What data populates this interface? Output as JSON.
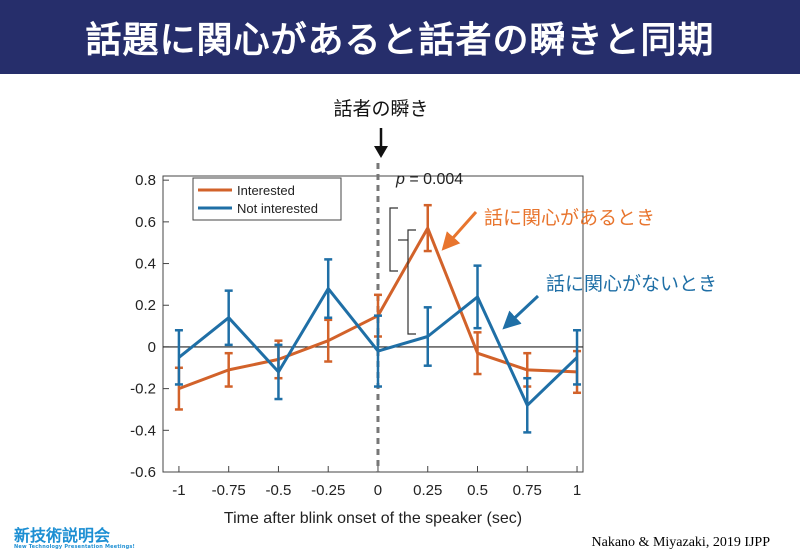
{
  "header": {
    "title": "話題に関心があると話者の瞬きと同期"
  },
  "footer": {
    "logo_main": "新技術説明会",
    "logo_sub": "New Technology Presentation Meetings!",
    "citation": "Nakano & Miyazaki, 2019 IJPP"
  },
  "colors": {
    "interested": "#d2622a",
    "not_interested": "#1f6fa6",
    "header_bg": "#262e6b"
  },
  "chart_data": {
    "type": "line",
    "xlabel": "Time after blink onset of the speaker (sec)",
    "ylabel": "",
    "x": [
      -1,
      -0.75,
      -0.5,
      -0.25,
      0,
      0.25,
      0.5,
      0.75,
      1
    ],
    "xticks": [
      "-1",
      "-0.75",
      "-0.5",
      "-0.25",
      "0",
      "0.25",
      "0.5",
      "0.75",
      "1"
    ],
    "yticks": [
      "-0.6",
      "-0.4",
      "-0.2",
      "0",
      "0.2",
      "0.4",
      "0.6",
      "0.8"
    ],
    "xlim": [
      -1.08,
      1.03
    ],
    "ylim": [
      -0.6,
      0.82
    ],
    "grid": false,
    "legend_position": "top-left",
    "series": [
      {
        "name": "Interested",
        "color": "#d2622a",
        "values": [
          -0.2,
          -0.11,
          -0.06,
          0.03,
          0.15,
          0.57,
          -0.03,
          -0.11,
          -0.12
        ],
        "err": [
          0.1,
          0.08,
          0.09,
          0.1,
          0.1,
          0.11,
          0.1,
          0.08,
          0.1
        ]
      },
      {
        "name": "Not interested",
        "color": "#1f6fa6",
        "values": [
          -0.05,
          0.14,
          -0.12,
          0.28,
          -0.02,
          0.05,
          0.24,
          -0.28,
          -0.05
        ],
        "err": [
          0.13,
          0.13,
          0.13,
          0.14,
          0.17,
          0.14,
          0.15,
          0.13,
          0.13
        ]
      }
    ],
    "annotations": {
      "onset_label": "話者の瞬き",
      "pvalue_prefix": "p",
      "pvalue_rest": " = 0.004",
      "interested_label": "話に関心があるとき",
      "not_interested_label": "話に関心がないとき"
    }
  }
}
